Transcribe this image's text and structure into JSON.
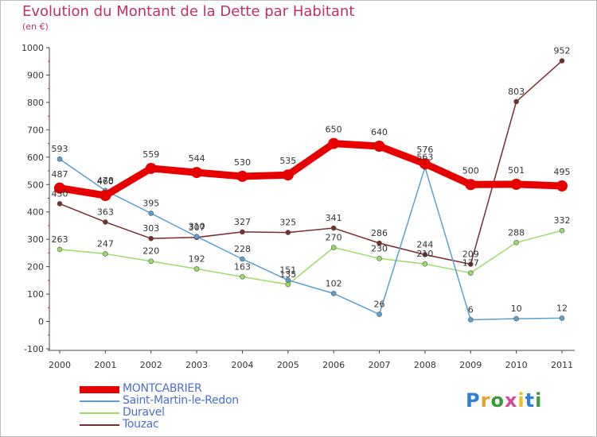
{
  "title": "Evolution du Montant de la Dette par Habitant",
  "subtitle": "(en €)",
  "logo": {
    "letters": [
      "P",
      "r",
      "o",
      "x",
      "i",
      "t",
      "i"
    ],
    "colors": [
      "#2f7fd6",
      "#e8a030",
      "#3a9a3a",
      "#d44a9a",
      "#e8c020",
      "#2f7fd6",
      "#3a9a3a"
    ]
  },
  "chart_data": {
    "type": "line",
    "x": [
      "2000",
      "2001",
      "2002",
      "2003",
      "2004",
      "2005",
      "2006",
      "2007",
      "2008",
      "2009",
      "2010",
      "2011"
    ],
    "ylim": [
      -100,
      1000
    ],
    "yticks": [
      "-100",
      "0",
      "100",
      "200",
      "300",
      "400",
      "500",
      "600",
      "700",
      "800",
      "900",
      "1000"
    ],
    "grid": false,
    "legend_position": "bottom-left",
    "series": [
      {
        "name": "MONTCABRIER",
        "color": "#e60000",
        "width": 9,
        "marker": 7,
        "values": [
          487,
          460,
          559,
          544,
          530,
          535,
          650,
          640,
          576,
          500,
          501,
          495
        ],
        "labels": [
          "487",
          "460",
          "559",
          "544",
          "530",
          "535",
          "650",
          "640",
          "576",
          "500",
          "501",
          "495"
        ]
      },
      {
        "name": "Saint-Martin-le-Redon",
        "color": "#5aa0d0",
        "width": 1.5,
        "marker": 3,
        "values": [
          593,
          478,
          395,
          310,
          228,
          151,
          102,
          26,
          563,
          6,
          10,
          12
        ],
        "labels": [
          "593",
          "478",
          "395",
          "310",
          "228",
          "151",
          "102",
          "26",
          "563",
          "6",
          "10",
          "12"
        ]
      },
      {
        "name": "Duravel",
        "color": "#99dd66",
        "width": 1.5,
        "marker": 3,
        "values": [
          263,
          247,
          220,
          192,
          163,
          135,
          270,
          230,
          210,
          177,
          288,
          332
        ],
        "labels": [
          "263",
          "247",
          "220",
          "192",
          "163",
          "135",
          "270",
          "230",
          "210",
          "177",
          "288",
          "332"
        ]
      },
      {
        "name": "Touzac",
        "color": "#7a2c2c",
        "width": 1.5,
        "marker": 3,
        "values": [
          430,
          363,
          303,
          307,
          327,
          325,
          341,
          286,
          244,
          209,
          803,
          952
        ],
        "labels": [
          "430",
          "363",
          "303",
          "307",
          "327",
          "325",
          "341",
          "286",
          "244",
          "209",
          "803",
          "952"
        ]
      }
    ]
  }
}
